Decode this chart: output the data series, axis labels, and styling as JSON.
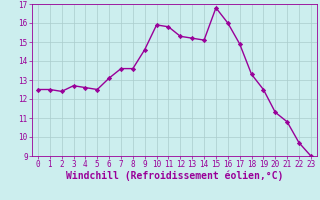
{
  "x": [
    0,
    1,
    2,
    3,
    4,
    5,
    6,
    7,
    8,
    9,
    10,
    11,
    12,
    13,
    14,
    15,
    16,
    17,
    18,
    19,
    20,
    21,
    22,
    23
  ],
  "y": [
    12.5,
    12.5,
    12.4,
    12.7,
    12.6,
    12.5,
    13.1,
    13.6,
    13.6,
    14.6,
    15.9,
    15.8,
    15.3,
    15.2,
    15.1,
    16.8,
    16.0,
    14.9,
    13.3,
    12.5,
    11.3,
    10.8,
    9.7,
    9.0
  ],
  "line_color": "#990099",
  "marker": "D",
  "marker_size": 2.2,
  "bg_color": "#cceeee",
  "grid_color": "#aacccc",
  "xlabel": "Windchill (Refroidissement éolien,°C)",
  "xlabel_color": "#990099",
  "ylim": [
    9,
    17
  ],
  "xlim": [
    -0.5,
    23.5
  ],
  "yticks": [
    9,
    10,
    11,
    12,
    13,
    14,
    15,
    16,
    17
  ],
  "xticks": [
    0,
    1,
    2,
    3,
    4,
    5,
    6,
    7,
    8,
    9,
    10,
    11,
    12,
    13,
    14,
    15,
    16,
    17,
    18,
    19,
    20,
    21,
    22,
    23
  ],
  "tick_color": "#990099",
  "tick_label_fontsize": 5.5,
  "xlabel_fontsize": 7.0,
  "line_width": 1.0
}
